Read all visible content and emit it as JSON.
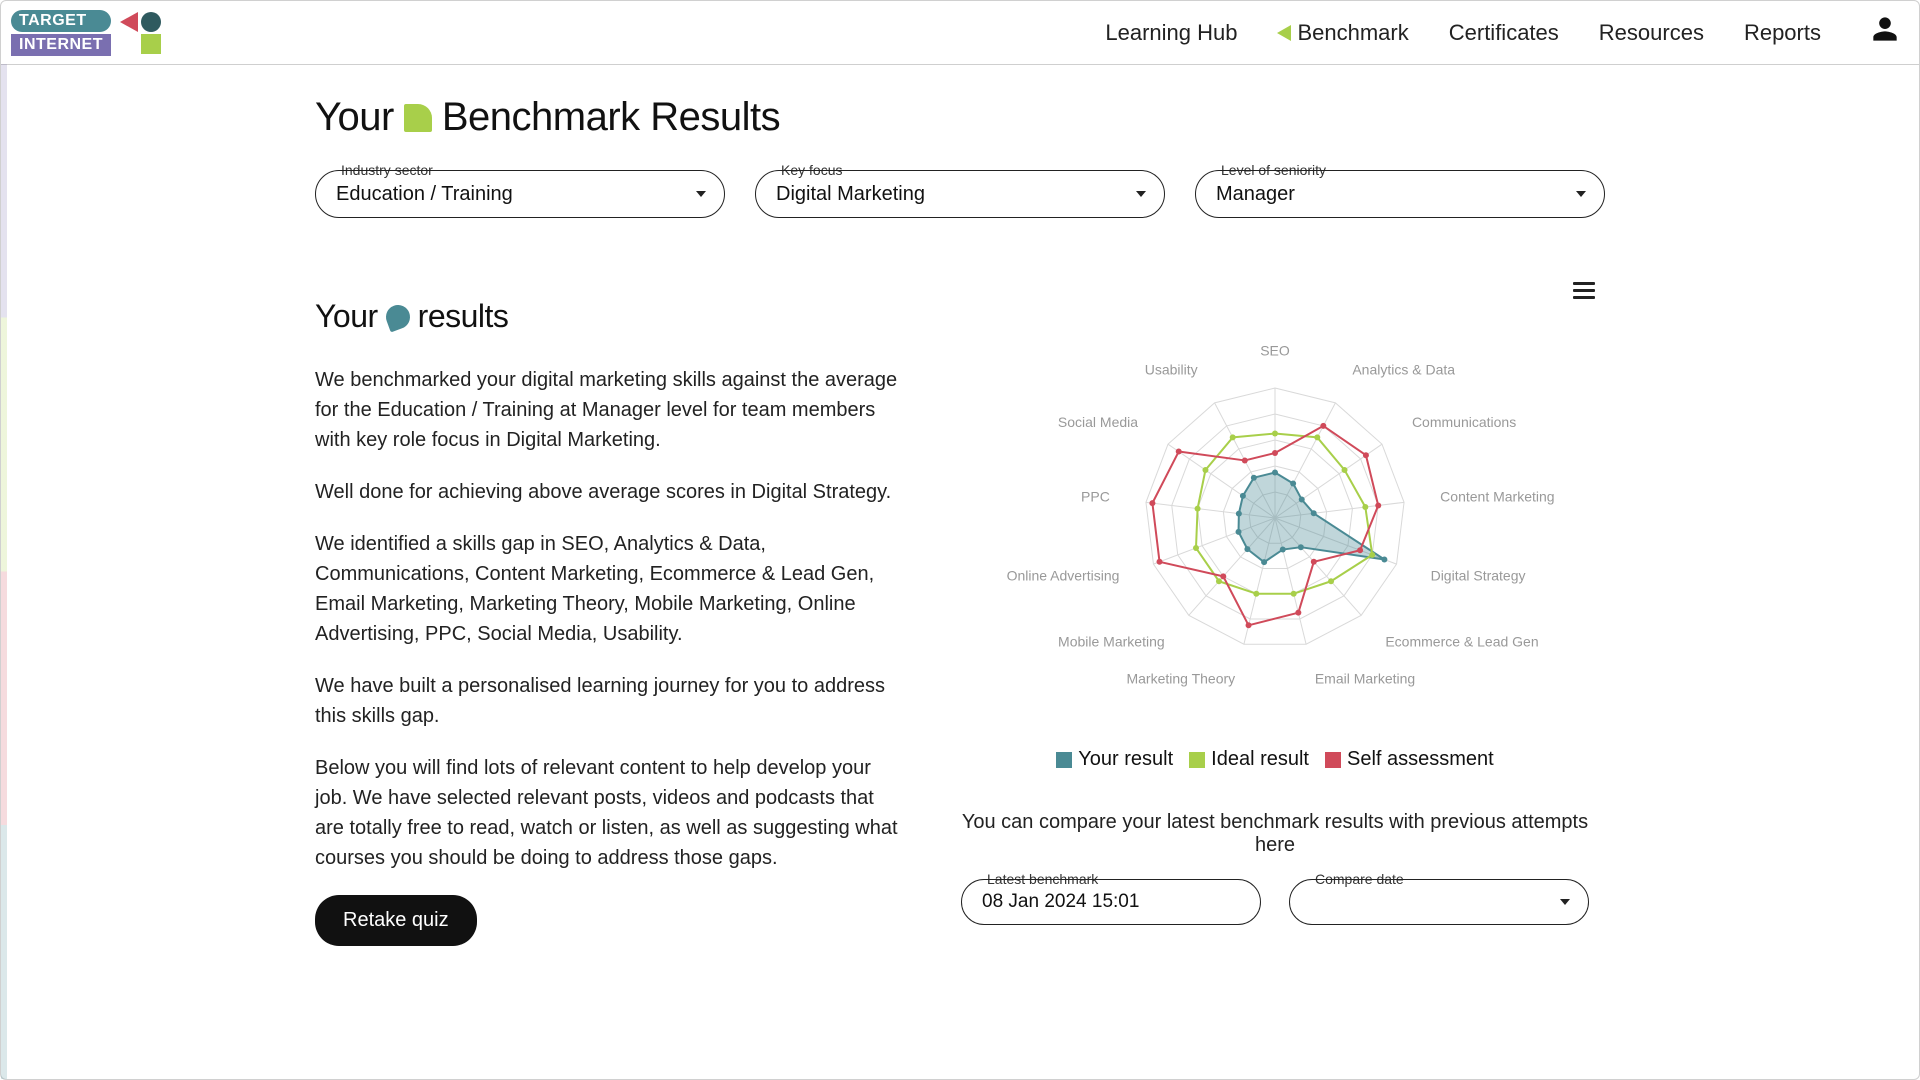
{
  "logo": {
    "line1": "TARGET",
    "line2": "INTERNET"
  },
  "nav": {
    "items": [
      {
        "label": "Learning Hub"
      },
      {
        "label": "Benchmark",
        "active": true
      },
      {
        "label": "Certificates"
      },
      {
        "label": "Resources"
      },
      {
        "label": "Reports"
      }
    ]
  },
  "title": {
    "prefix": "Your",
    "suffix": "Benchmark Results"
  },
  "selectors": {
    "industry": {
      "label": "Industry sector",
      "value": "Education / Training"
    },
    "focus": {
      "label": "Key focus",
      "value": "Digital Marketing"
    },
    "seniority": {
      "label": "Level of seniority",
      "value": "Manager"
    }
  },
  "results": {
    "heading_prefix": "Your",
    "heading_suffix": "results",
    "paragraphs": [
      "We benchmarked your digital marketing skills against the average for the Education / Training at Manager level for team members with key role focus in Digital Marketing.",
      "Well done for achieving above average scores in Digital Strategy.",
      "We identified a skills gap in SEO, Analytics & Data, Communications, Content Marketing, Ecommerce & Lead Gen, Email Marketing, Marketing Theory, Mobile Marketing, Online Advertising, PPC, Social Media, Usability.",
      "We have built a personalised learning journey for you to address this skills gap.",
      "Below you will find lots of relevant content to help develop your job. We have selected relevant posts, videos and podcasts that are totally free to read, watch or listen, as well as suggesting what courses you should be doing to address those gaps."
    ],
    "retake_label": "Retake quiz"
  },
  "radar": {
    "axes": [
      "SEO",
      "Analytics & Data",
      "Communications",
      "Content Marketing",
      "Digital Strategy",
      "Ecommerce & Lead Gen",
      "Email Marketing",
      "Marketing Theory",
      "Mobile Marketing",
      "Online Advertising",
      "PPC",
      "Social Media",
      "Usability"
    ],
    "max": 100,
    "rings": 5,
    "series": {
      "your": {
        "label": "Your result",
        "color": "#4a8a94",
        "fill_opacity": 0.35,
        "values": [
          35,
          30,
          25,
          30,
          90,
          30,
          25,
          35,
          32,
          30,
          28,
          30,
          35
        ]
      },
      "ideal": {
        "label": "Ideal result",
        "color": "#a8cf4a",
        "fill_opacity": 0.0,
        "values": [
          65,
          70,
          65,
          70,
          80,
          65,
          60,
          60,
          65,
          65,
          60,
          65,
          70
        ]
      },
      "self": {
        "label": "Self assessment",
        "color": "#d04a5a",
        "fill_opacity": 0.0,
        "values": [
          50,
          80,
          85,
          80,
          70,
          45,
          75,
          85,
          60,
          95,
          95,
          90,
          50
        ]
      }
    },
    "grid_color": "#d9d9d9",
    "label_color": "#999999",
    "stroke_width": 2,
    "marker_radius": 3
  },
  "legend": {
    "items": [
      {
        "label": "Your result",
        "color": "#4a8a94"
      },
      {
        "label": "Ideal result",
        "color": "#a8cf4a"
      },
      {
        "label": "Self assessment",
        "color": "#d04a5a"
      }
    ]
  },
  "compare": {
    "text": "You can compare your latest benchmark results with previous attempts here",
    "latest": {
      "label": "Latest benchmark",
      "value": "08 Jan 2024 15:01"
    },
    "compare": {
      "label": "Compare date",
      "value": ""
    }
  }
}
